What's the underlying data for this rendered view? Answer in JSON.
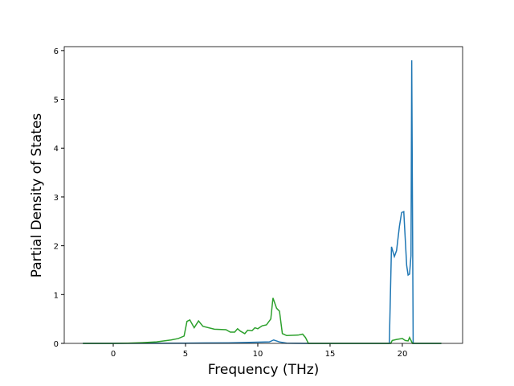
{
  "chart_data": {
    "type": "line",
    "x_label": "Frequency (THz)",
    "y_label": "Partial Density of States",
    "xlim": [
      -3.39,
      24.17
    ],
    "ylim": [
      0,
      6.08
    ],
    "xticks": [
      0,
      5,
      10,
      15,
      20
    ],
    "yticks": [
      0,
      1,
      2,
      3,
      4,
      5,
      6
    ],
    "series": [
      {
        "color": "#1f77b4",
        "x": [
          -2.1,
          4.9,
          8,
          10.8,
          11.1,
          11.5,
          12,
          13.3,
          19.1,
          19.25,
          19.45,
          19.6,
          19.8,
          19.95,
          20.1,
          20.3,
          20.4,
          20.5,
          20.6,
          20.65,
          20.75,
          22.7
        ],
        "values": [
          0,
          0.005,
          0.01,
          0.03,
          0.07,
          0.03,
          0.005,
          0,
          0,
          1.98,
          1.78,
          1.9,
          2.4,
          2.68,
          2.7,
          1.6,
          1.4,
          1.42,
          1.8,
          5.8,
          0,
          0
        ]
      },
      {
        "color": "#2ca02c",
        "x": [
          -2.1,
          0,
          1,
          2,
          3,
          4,
          4.5,
          4.9,
          5.1,
          5.3,
          5.6,
          5.9,
          6.2,
          7,
          7.8,
          8.1,
          8.4,
          8.6,
          8.8,
          9.1,
          9.3,
          9.6,
          9.8,
          10,
          10.3,
          10.6,
          10.9,
          11.05,
          11.3,
          11.5,
          11.7,
          12,
          12.8,
          13.1,
          13.3,
          13.5,
          19.2,
          19.3,
          19.6,
          20,
          20.2,
          20.4,
          20.5,
          20.7,
          22.7
        ],
        "values": [
          0,
          0,
          0.005,
          0.015,
          0.03,
          0.07,
          0.1,
          0.15,
          0.45,
          0.48,
          0.32,
          0.46,
          0.35,
          0.29,
          0.28,
          0.23,
          0.23,
          0.3,
          0.25,
          0.2,
          0.27,
          0.26,
          0.32,
          0.3,
          0.36,
          0.38,
          0.5,
          0.93,
          0.72,
          0.66,
          0.2,
          0.16,
          0.17,
          0.19,
          0.12,
          0,
          0,
          0.06,
          0.08,
          0.1,
          0.06,
          0.05,
          0.12,
          0,
          0
        ]
      }
    ]
  }
}
